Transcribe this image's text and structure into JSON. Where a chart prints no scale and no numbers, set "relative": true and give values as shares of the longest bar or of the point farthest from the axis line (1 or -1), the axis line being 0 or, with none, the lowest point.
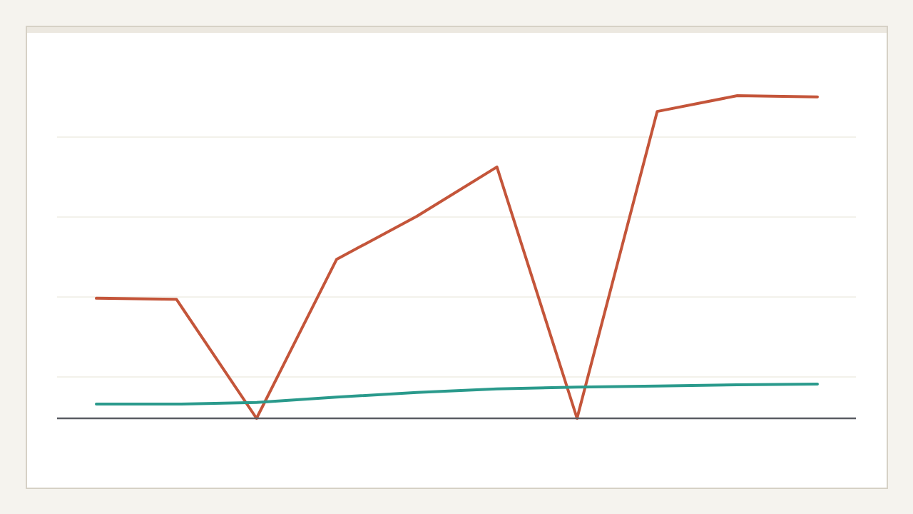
{
  "chart_data": {
    "type": "line",
    "relative": true,
    "categories": [
      null,
      null,
      null,
      null,
      null,
      null,
      null,
      null,
      null,
      null
    ],
    "series": [
      {
        "color": "#c4553a",
        "values": [
          0.372,
          0.369,
          0,
          0.493,
          0.626,
          0.779,
          0,
          0.951,
          1,
          0.996
        ]
      },
      {
        "color": "#2a9a8c",
        "values": [
          0.044,
          0.044,
          0.049,
          0.066,
          0.08,
          0.091,
          0.097,
          0.1,
          0.104,
          0.106
        ]
      }
    ],
    "grid": "y",
    "marker": "none",
    "line_style": "solid"
  }
}
